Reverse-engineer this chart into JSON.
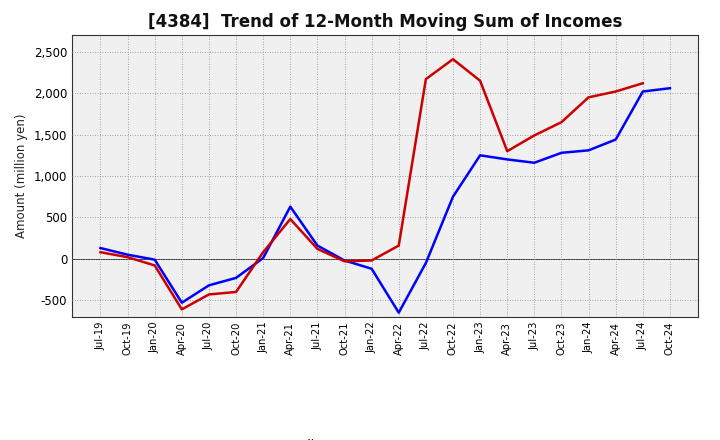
{
  "title": "[4384]  Trend of 12-Month Moving Sum of Incomes",
  "ylabel": "Amount (million yen)",
  "background_color": "#ffffff",
  "plot_bg_color": "#f0f0f0",
  "ordinary_income_color": "#0000ff",
  "net_income_color": "#cc0000",
  "line_width": 1.8,
  "ylim": [
    -700,
    2700
  ],
  "yticks": [
    -500,
    0,
    500,
    1000,
    1500,
    2000,
    2500
  ],
  "x_labels": [
    "Jul-19",
    "Oct-19",
    "Jan-20",
    "Apr-20",
    "Jul-20",
    "Oct-20",
    "Jan-21",
    "Apr-21",
    "Jul-21",
    "Oct-21",
    "Jan-22",
    "Apr-22",
    "Jul-22",
    "Oct-22",
    "Jan-23",
    "Apr-23",
    "Jul-23",
    "Oct-23",
    "Jan-24",
    "Apr-24",
    "Jul-24",
    "Oct-24"
  ],
  "ordinary_income": [
    130,
    50,
    -10,
    -530,
    -320,
    -230,
    10,
    630,
    160,
    -20,
    -120,
    -650,
    -50,
    750,
    1250,
    1200,
    1160,
    1280,
    1310,
    1440,
    2020,
    2060
  ],
  "net_income": [
    80,
    20,
    -80,
    -610,
    -430,
    -400,
    80,
    480,
    120,
    -30,
    -20,
    160,
    2170,
    2410,
    2150,
    1300,
    1490,
    1650,
    1950,
    2020,
    2120,
    null
  ]
}
